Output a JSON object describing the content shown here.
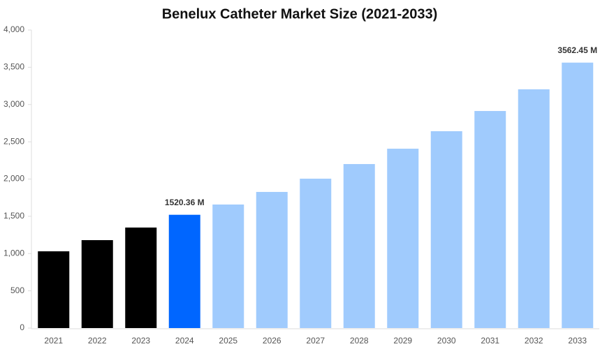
{
  "chart_data": {
    "type": "bar",
    "title": "Benelux Catheter Market Size (2021-2033)",
    "categories": [
      "2021",
      "2022",
      "2023",
      "2024",
      "2025",
      "2026",
      "2027",
      "2028",
      "2029",
      "2030",
      "2031",
      "2032",
      "2033"
    ],
    "values": [
      1030,
      1180,
      1349,
      1520.36,
      1658,
      1827,
      2005,
      2201,
      2407,
      2642,
      2913,
      3204,
      3562.45
    ],
    "value_labels": [
      null,
      null,
      null,
      "1520.36 M",
      null,
      null,
      null,
      null,
      null,
      null,
      null,
      null,
      "3562.45 M"
    ],
    "colors": [
      "#000000",
      "#000000",
      "#000000",
      "#0066ff",
      "#a0cbfd",
      "#a0cbfd",
      "#a0cbfd",
      "#a0cbfd",
      "#a0cbfd",
      "#a0cbfd",
      "#a0cbfd",
      "#a0cbfd",
      "#a0cbfd"
    ],
    "ylim": [
      0,
      4000
    ],
    "yticks": [
      0,
      500,
      {
        "value": 1000,
        "label": "1,000"
      },
      {
        "value": 1500,
        "label": "1,500"
      },
      {
        "value": 2000,
        "label": "2,000"
      },
      {
        "value": 2500,
        "label": "2,500"
      },
      {
        "value": 3000,
        "label": "3,000"
      },
      {
        "value": 3500,
        "label": "3,500"
      },
      {
        "value": 4000,
        "label": "4,000"
      }
    ],
    "grid": false
  }
}
